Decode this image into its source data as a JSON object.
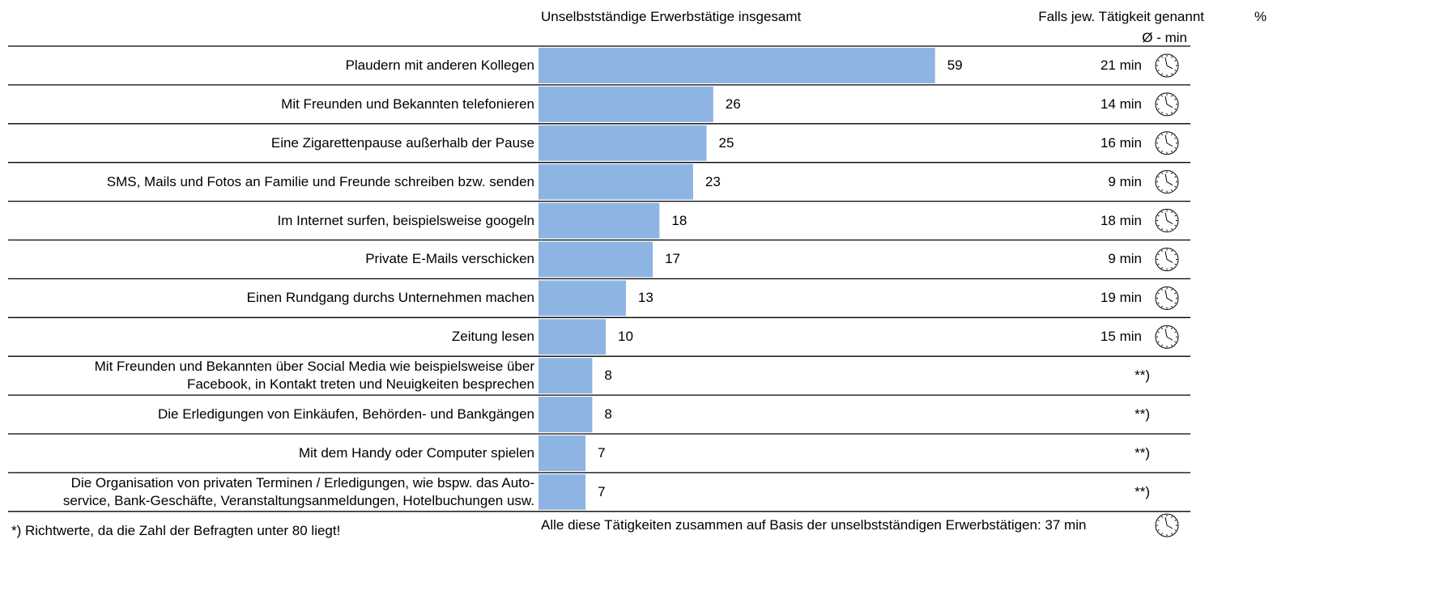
{
  "chart_data": {
    "type": "bar",
    "orientation": "horizontal",
    "header_left": "Unselbstständige Erwerbstätige insgesamt",
    "header_right": "Falls jew. Tätigkeit genannt",
    "header_unit": "%",
    "header_min": "Ø - min",
    "categories": [
      "Plaudern mit anderen Kollegen",
      "Mit Freunden und Bekannten telefonieren",
      "Eine Zigarettenpause außerhalb der Pause",
      "SMS, Mails und Fotos an Familie und Freunde schreiben bzw. senden",
      "Im Internet surfen, beispielsweise googeln",
      "Private E-Mails verschicken",
      "Einen Rundgang durchs Unternehmen machen",
      "Zeitung lesen",
      "Mit Freunden und Bekannten über Social Media wie beispielsweise über\nFacebook, in Kontakt treten und Neuigkeiten besprechen",
      "Die Erledigungen von Einkäufen, Behörden- und Bankgängen",
      "Mit dem Handy oder Computer spielen",
      "Die Organisation von privaten Terminen / Erledigungen, wie bspw. das Auto-\nservice, Bank-Geschäfte, Veranstaltungsanmeldungen, Hotelbuchungen usw."
    ],
    "values": [
      59,
      26,
      25,
      23,
      18,
      17,
      13,
      10,
      8,
      8,
      7,
      7
    ],
    "color": "#8eb4e3",
    "minutes": [
      21,
      14,
      16,
      9,
      18,
      9,
      19,
      15,
      null,
      null,
      null,
      null
    ],
    "minute_labels": [
      "21 min",
      "14 min",
      "16 min",
      "9 min",
      "18 min",
      "9 min",
      "19 min",
      "15 min",
      "**)",
      "**)",
      "**)",
      "**)"
    ],
    "summary": "Alle diese Tätigkeiten zusammen auf Basis der unselbstständigen Erwerbstätigen: 37 min",
    "footnote": "*) Richtwerte, da die Zahl der Befragten unter 80 liegt!"
  }
}
